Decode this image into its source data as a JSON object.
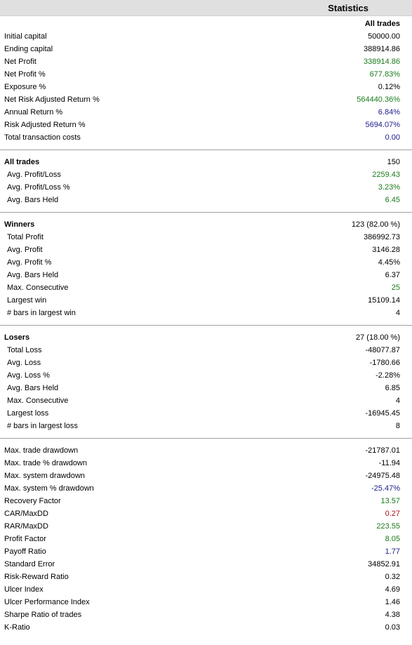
{
  "header": {
    "title": "Statistics"
  },
  "column_header": "All trades",
  "sections": [
    {
      "rows": [
        {
          "label": "Initial capital",
          "value": "50000.00",
          "color": "black",
          "bold": false,
          "indent": false
        },
        {
          "label": "Ending capital",
          "value": "388914.86",
          "color": "black",
          "bold": false,
          "indent": false
        },
        {
          "label": "Net Profit",
          "value": "338914.86",
          "color": "green",
          "bold": false,
          "indent": false
        },
        {
          "label": "Net Profit %",
          "value": "677.83%",
          "color": "green",
          "bold": false,
          "indent": false
        },
        {
          "label": "Exposure %",
          "value": "0.12%",
          "color": "black",
          "bold": false,
          "indent": false
        },
        {
          "label": "Net Risk Adjusted Return %",
          "value": "564440.36%",
          "color": "green",
          "bold": false,
          "indent": false
        },
        {
          "label": "Annual Return %",
          "value": "6.84%",
          "color": "navy",
          "bold": false,
          "indent": false
        },
        {
          "label": "Risk Adjusted Return %",
          "value": "5694.07%",
          "color": "navy",
          "bold": false,
          "indent": false
        },
        {
          "label": "Total transaction costs",
          "value": "0.00",
          "color": "navy",
          "bold": false,
          "indent": false
        }
      ]
    },
    {
      "rows": [
        {
          "label": "All trades",
          "value": "150",
          "color": "black",
          "bold": true,
          "indent": false
        },
        {
          "label": "Avg. Profit/Loss",
          "value": "2259.43",
          "color": "green",
          "bold": false,
          "indent": true
        },
        {
          "label": "Avg. Profit/Loss %",
          "value": "3.23%",
          "color": "green",
          "bold": false,
          "indent": true
        },
        {
          "label": "Avg. Bars Held",
          "value": "6.45",
          "color": "green",
          "bold": false,
          "indent": true
        }
      ]
    },
    {
      "rows": [
        {
          "label": "Winners",
          "value": "123 (82.00 %)",
          "color": "black",
          "bold": true,
          "indent": false
        },
        {
          "label": "Total Profit",
          "value": "386992.73",
          "color": "black",
          "bold": false,
          "indent": true
        },
        {
          "label": "Avg. Profit",
          "value": "3146.28",
          "color": "black",
          "bold": false,
          "indent": true
        },
        {
          "label": "Avg. Profit %",
          "value": "4.45%",
          "color": "black",
          "bold": false,
          "indent": true
        },
        {
          "label": "Avg. Bars Held",
          "value": "6.37",
          "color": "black",
          "bold": false,
          "indent": true
        },
        {
          "label": "Max. Consecutive",
          "value": "25",
          "color": "green",
          "bold": false,
          "indent": true
        },
        {
          "label": "Largest win",
          "value": "15109.14",
          "color": "black",
          "bold": false,
          "indent": true
        },
        {
          "label": "# bars in largest win",
          "value": "4",
          "color": "black",
          "bold": false,
          "indent": true
        }
      ]
    },
    {
      "rows": [
        {
          "label": "Losers",
          "value": "27 (18.00 %)",
          "color": "black",
          "bold": true,
          "indent": false
        },
        {
          "label": "Total Loss",
          "value": "-48077.87",
          "color": "black",
          "bold": false,
          "indent": true
        },
        {
          "label": "Avg. Loss",
          "value": "-1780.66",
          "color": "black",
          "bold": false,
          "indent": true
        },
        {
          "label": "Avg. Loss %",
          "value": "-2.28%",
          "color": "black",
          "bold": false,
          "indent": true
        },
        {
          "label": "Avg. Bars Held",
          "value": "6.85",
          "color": "black",
          "bold": false,
          "indent": true
        },
        {
          "label": "Max. Consecutive",
          "value": "4",
          "color": "black",
          "bold": false,
          "indent": true
        },
        {
          "label": "Largest loss",
          "value": "-16945.45",
          "color": "black",
          "bold": false,
          "indent": true
        },
        {
          "label": "# bars in largest loss",
          "value": "8",
          "color": "black",
          "bold": false,
          "indent": true
        }
      ]
    },
    {
      "rows": [
        {
          "label": "Max. trade drawdown",
          "value": "-21787.01",
          "color": "black",
          "bold": false,
          "indent": false
        },
        {
          "label": "Max. trade % drawdown",
          "value": "-11.94",
          "color": "black",
          "bold": false,
          "indent": false
        },
        {
          "label": "Max. system drawdown",
          "value": "-24975.48",
          "color": "black",
          "bold": false,
          "indent": false
        },
        {
          "label": "Max. system % drawdown",
          "value": "-25.47%",
          "color": "navy",
          "bold": false,
          "indent": false
        },
        {
          "label": "Recovery Factor",
          "value": "13.57",
          "color": "green",
          "bold": false,
          "indent": false
        },
        {
          "label": "CAR/MaxDD",
          "value": "0.27",
          "color": "red",
          "bold": false,
          "indent": false
        },
        {
          "label": "RAR/MaxDD",
          "value": "223.55",
          "color": "green",
          "bold": false,
          "indent": false
        },
        {
          "label": "Profit Factor",
          "value": "8.05",
          "color": "green",
          "bold": false,
          "indent": false
        },
        {
          "label": "Payoff Ratio",
          "value": "1.77",
          "color": "navy",
          "bold": false,
          "indent": false
        },
        {
          "label": "Standard Error",
          "value": "34852.91",
          "color": "black",
          "bold": false,
          "indent": false
        },
        {
          "label": "Risk-Reward Ratio",
          "value": "0.32",
          "color": "black",
          "bold": false,
          "indent": false
        },
        {
          "label": "Ulcer Index",
          "value": "4.69",
          "color": "black",
          "bold": false,
          "indent": false
        },
        {
          "label": "Ulcer Performance Index",
          "value": "1.46",
          "color": "black",
          "bold": false,
          "indent": false
        },
        {
          "label": "Sharpe Ratio of trades",
          "value": "4.38",
          "color": "black",
          "bold": false,
          "indent": false
        },
        {
          "label": "K-Ratio",
          "value": "0.03",
          "color": "black",
          "bold": false,
          "indent": false
        }
      ]
    }
  ]
}
